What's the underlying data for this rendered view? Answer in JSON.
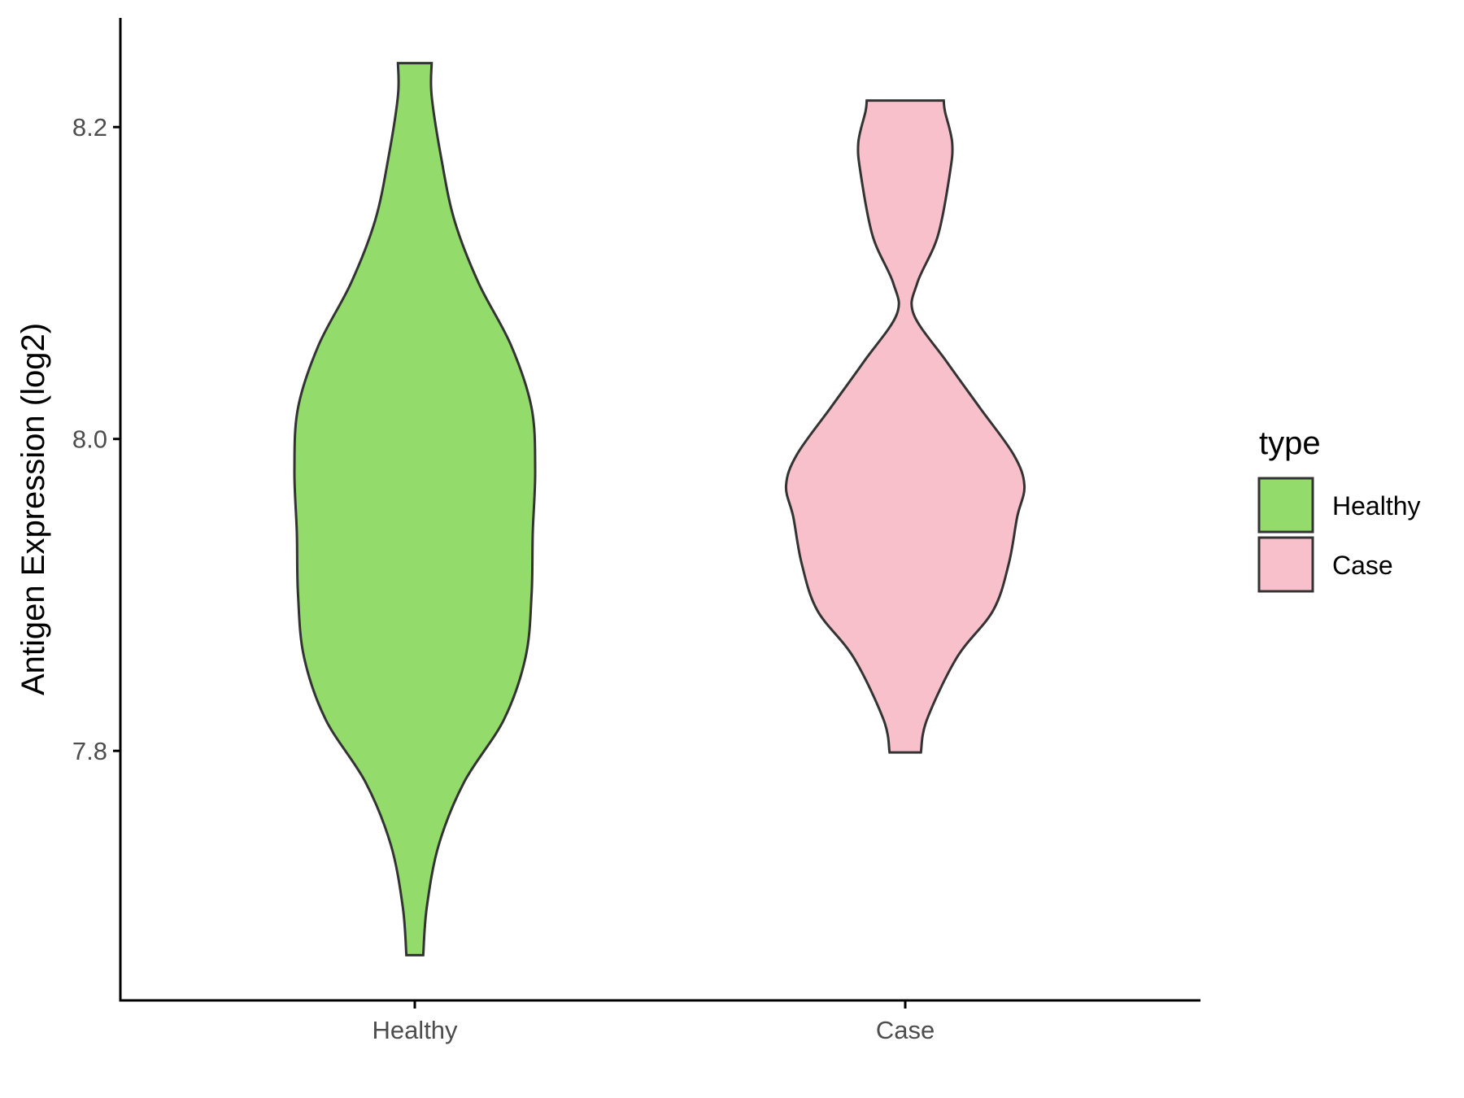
{
  "chart_data": {
    "type": "violin",
    "title": "",
    "xlabel": "",
    "ylabel": "Antigen Expression (log2)",
    "ylim": [
      7.64,
      8.27
    ],
    "y_ticks": [
      7.8,
      8.0,
      8.2
    ],
    "y_tick_labels": [
      "7.8",
      "8.0",
      "8.2"
    ],
    "categories": [
      "Healthy",
      "Case"
    ],
    "colors": {
      "Healthy": "#93DC6B",
      "Case": "#F7C0CB",
      "outline": "#333333"
    },
    "legend": {
      "title": "type",
      "placement": "right",
      "entries": [
        "Healthy",
        "Case"
      ]
    },
    "grid": false,
    "series": [
      {
        "name": "Healthy",
        "min": 7.669,
        "max": 8.241,
        "density_profile": [
          [
            7.669,
            0.07
          ],
          [
            7.7,
            0.1
          ],
          [
            7.74,
            0.2
          ],
          [
            7.78,
            0.41
          ],
          [
            7.82,
            0.74
          ],
          [
            7.86,
            0.92
          ],
          [
            7.9,
            0.97
          ],
          [
            7.94,
            0.98
          ],
          [
            7.98,
            1.0
          ],
          [
            8.02,
            0.97
          ],
          [
            8.06,
            0.8
          ],
          [
            8.1,
            0.53
          ],
          [
            8.14,
            0.33
          ],
          [
            8.18,
            0.22
          ],
          [
            8.22,
            0.14
          ],
          [
            8.241,
            0.14
          ]
        ]
      },
      {
        "name": "Case",
        "min": 7.799,
        "max": 8.217,
        "density_profile": [
          [
            7.799,
            0.13
          ],
          [
            7.82,
            0.18
          ],
          [
            7.86,
            0.43
          ],
          [
            7.89,
            0.73
          ],
          [
            7.92,
            0.86
          ],
          [
            7.95,
            0.93
          ],
          [
            7.97,
            0.99
          ],
          [
            7.99,
            0.9
          ],
          [
            8.02,
            0.62
          ],
          [
            8.05,
            0.34
          ],
          [
            8.08,
            0.07
          ],
          [
            8.1,
            0.1
          ],
          [
            8.13,
            0.27
          ],
          [
            8.17,
            0.37
          ],
          [
            8.19,
            0.39
          ],
          [
            8.21,
            0.33
          ],
          [
            8.217,
            0.32
          ]
        ]
      }
    ]
  }
}
